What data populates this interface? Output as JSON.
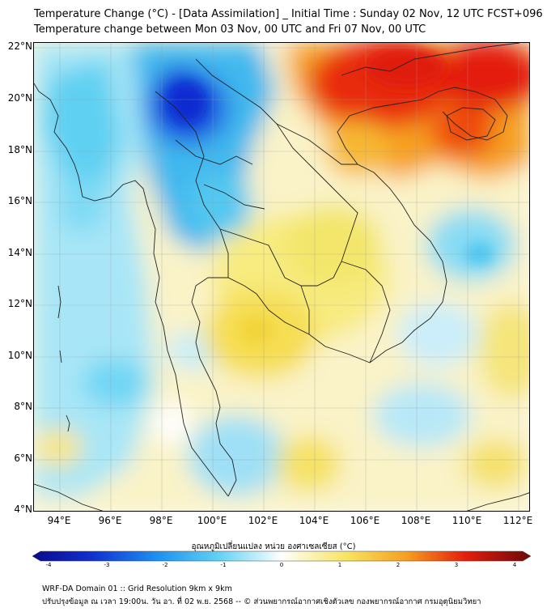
{
  "title_line1": "Temperature Change (°C) - [Data Assimilation] _ Initial Time : Sunday 02 Nov, 12 UTC FCST+096",
  "title_line2": "Temperature change between Mon 03 Nov, 00 UTC and Fri 07 Nov, 00 UTC",
  "lat_labels": [
    "22°N",
    "20°N",
    "18°N",
    "16°N",
    "14°N",
    "12°N",
    "10°N",
    "8°N",
    "6°N",
    "4°N"
  ],
  "lon_labels": [
    "94°E",
    "96°E",
    "98°E",
    "100°E",
    "102°E",
    "104°E",
    "106°E",
    "108°E",
    "110°E",
    "112°E"
  ],
  "colorbar": {
    "title": "อุณหภูมิเปลี่ยนแปลง หน่วย องศาเซลเซียส (°C)",
    "tick_labels": [
      "-4",
      "-3",
      "-2",
      "-1",
      "0",
      "1",
      "2",
      "3",
      "4"
    ],
    "min": -4,
    "max": 4
  },
  "footer_line1": "WRF-DA Domain 01 :: Grid Resolution 9km x 9km",
  "footer_line2": "ปรับปรุงข้อมูล ณ เวลา 19:00น. วัน อา. ที่ 02 พ.ย. 2568 -- © ส่วนพยากรณ์อากาศเชิงตัวเลข กองพยากรณ์อากาศ กรมอุตุนิยมวิทยา",
  "colors": {
    "cold": "#0a2fd8",
    "cool": "#29c3f0",
    "neutral": "#ffffff",
    "warm": "#fbe552",
    "hot": "#e61c0c",
    "land_border": "#222222"
  }
}
